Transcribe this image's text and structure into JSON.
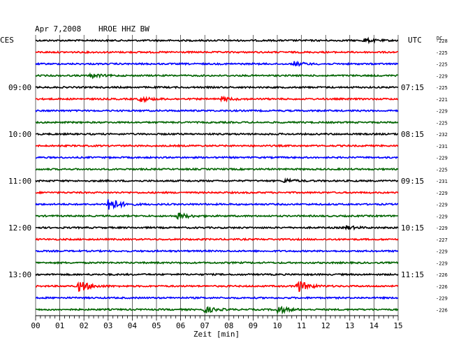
{
  "header": {
    "date": "Apr 7,2008",
    "station": "HROE HHZ BW",
    "left_zone": "CES",
    "right_zone": "UTC",
    "dc_label": "DC"
  },
  "colors": {
    "cycle": [
      "#000000",
      "#ff0000",
      "#0000ff",
      "#006400"
    ],
    "grid": "#000000"
  },
  "chart_data": {
    "type": "line",
    "title": "Apr 7,2008   HROE HHZ BW",
    "xlabel": "Zeit [min]",
    "ylabel": "",
    "xlim": [
      0,
      15
    ],
    "x_ticks": [
      "00",
      "01",
      "02",
      "03",
      "04",
      "05",
      "06",
      "07",
      "08",
      "09",
      "10",
      "11",
      "12",
      "13",
      "14",
      "15"
    ],
    "rows": 24,
    "row_minutes": 15,
    "left_time_labels": [
      {
        "row": 4,
        "label": "09:00"
      },
      {
        "row": 8,
        "label": "10:00"
      },
      {
        "row": 12,
        "label": "11:00"
      },
      {
        "row": 16,
        "label": "12:00"
      },
      {
        "row": 20,
        "label": "13:00"
      }
    ],
    "right_time_labels": [
      {
        "row": 4,
        "label": "07:15"
      },
      {
        "row": 8,
        "label": "08:15"
      },
      {
        "row": 12,
        "label": "09:15"
      },
      {
        "row": 16,
        "label": "10:15"
      },
      {
        "row": 20,
        "label": "11:15"
      }
    ],
    "dc_offsets": [
      -228,
      -225,
      -225,
      -229,
      -225,
      -221,
      -229,
      -225,
      -232,
      -231,
      -229,
      -225,
      -231,
      -229,
      -229,
      -229,
      -229,
      -227,
      -229,
      -229,
      -226,
      -226,
      -229,
      -226
    ],
    "events": [
      {
        "row": 0,
        "minute": 13.6,
        "amplitude": 3
      },
      {
        "row": 2,
        "minute": 10.7,
        "amplitude": 3
      },
      {
        "row": 3,
        "minute": 2.3,
        "amplitude": 3
      },
      {
        "row": 5,
        "minute": 4.3,
        "amplitude": 4
      },
      {
        "row": 5,
        "minute": 7.7,
        "amplitude": 3
      },
      {
        "row": 12,
        "minute": 10.3,
        "amplitude": 3
      },
      {
        "row": 14,
        "minute": 3.0,
        "amplitude": 12
      },
      {
        "row": 15,
        "minute": 5.9,
        "amplitude": 5
      },
      {
        "row": 16,
        "minute": 12.8,
        "amplitude": 3
      },
      {
        "row": 21,
        "minute": 1.8,
        "amplitude": 9
      },
      {
        "row": 21,
        "minute": 10.8,
        "amplitude": 10
      },
      {
        "row": 23,
        "minute": 7.0,
        "amplitude": 5
      },
      {
        "row": 23,
        "minute": 10.0,
        "amplitude": 6
      }
    ]
  }
}
